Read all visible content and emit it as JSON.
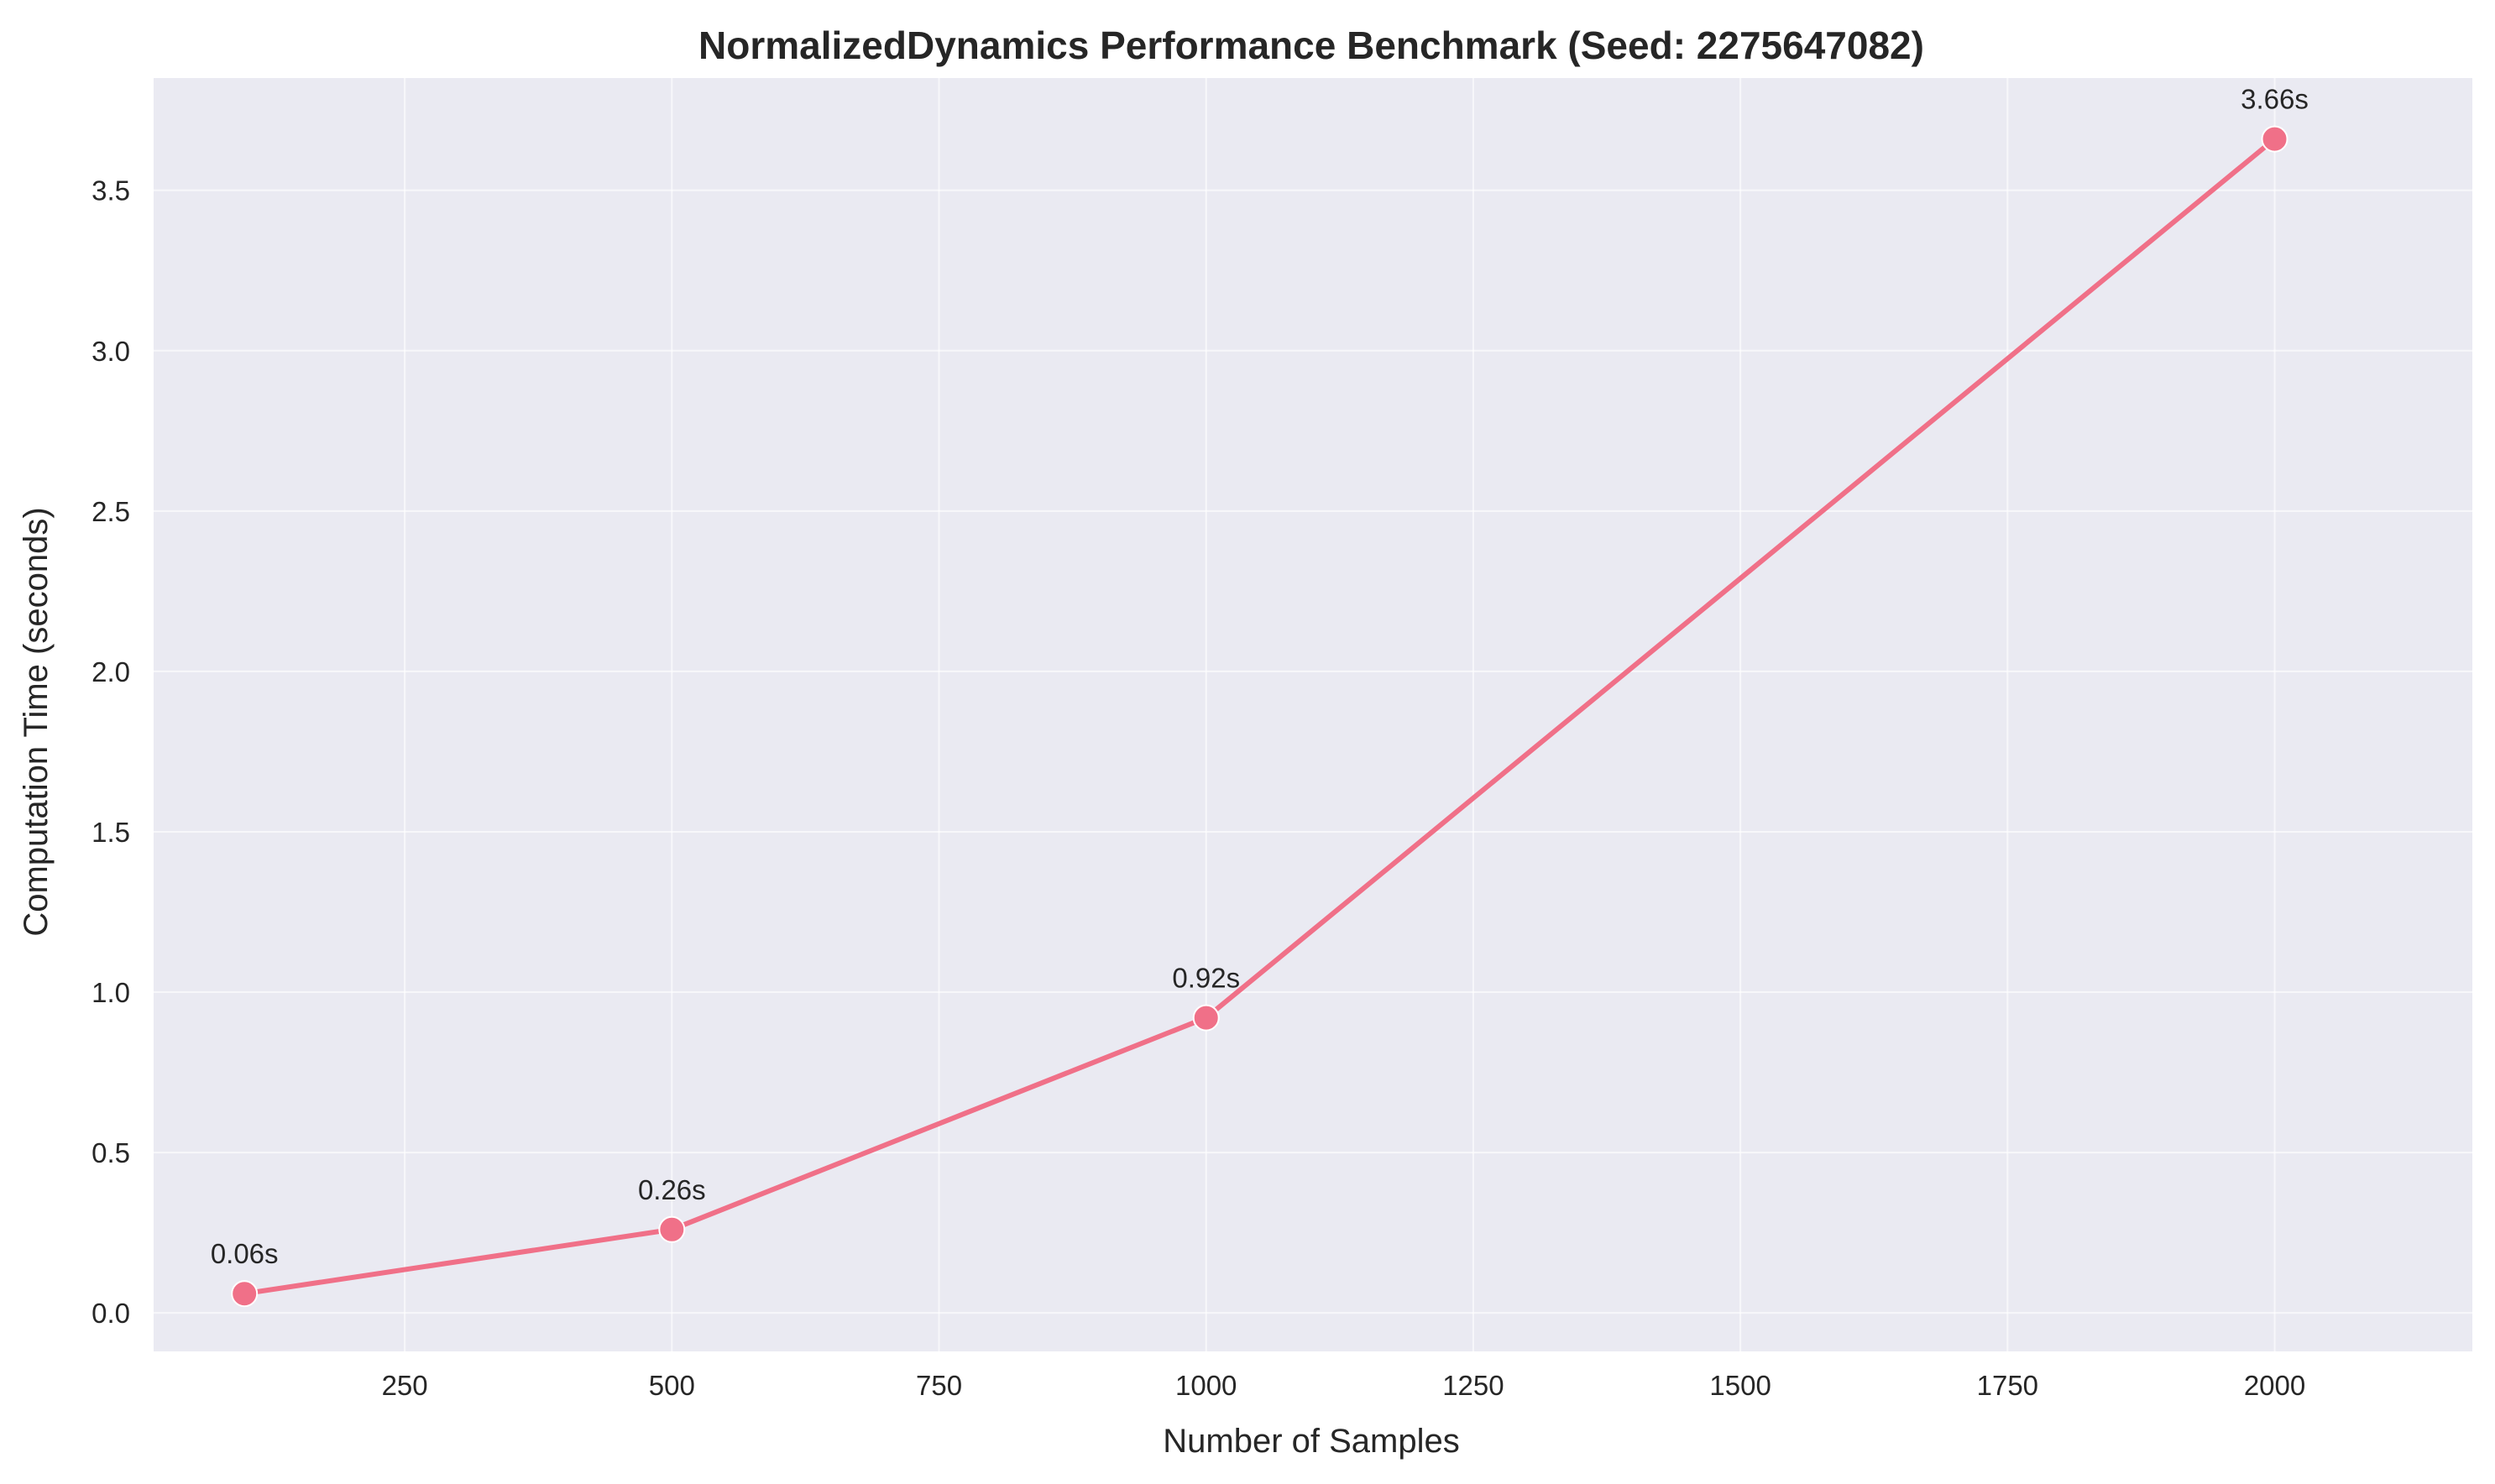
{
  "chart_data": {
    "type": "line",
    "title": "NormalizedDynamics Performance Benchmark (Seed: 2275647082)",
    "xlabel": "Number of Samples",
    "ylabel": "Computation Time (seconds)",
    "xlim": [
      15,
      2185
    ],
    "ylim": [
      -0.12,
      3.85
    ],
    "xticks": [
      250,
      500,
      750,
      1000,
      1250,
      1500,
      1750,
      2000
    ],
    "yticks": [
      0.0,
      0.5,
      1.0,
      1.5,
      2.0,
      2.5,
      3.0,
      3.5
    ],
    "grid": true,
    "background": "#eaeaf2",
    "series": [
      {
        "color": "#f07088",
        "x": [
          100,
          500,
          1000,
          2000
        ],
        "values": [
          0.06,
          0.26,
          0.92,
          3.66
        ],
        "labels": [
          "0.06s",
          "0.26s",
          "0.92s",
          "3.66s"
        ]
      }
    ]
  }
}
